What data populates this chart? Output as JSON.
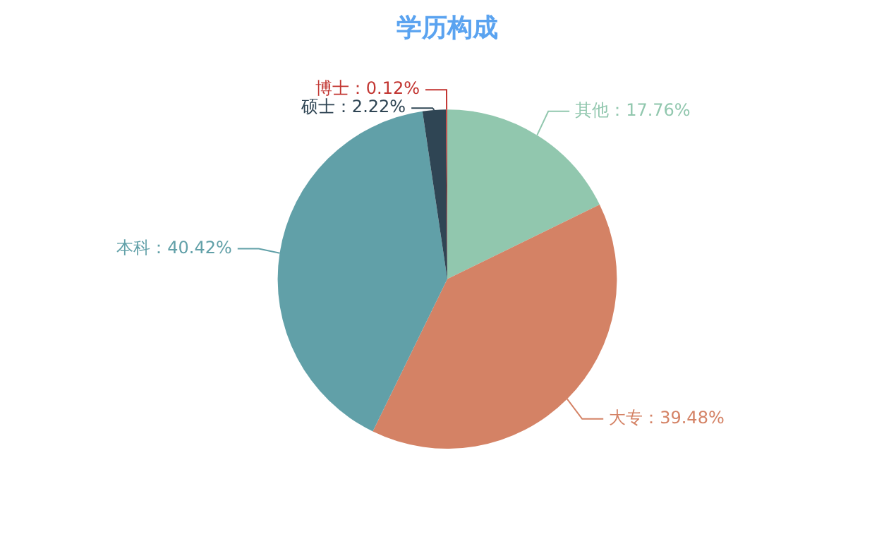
{
  "chart_data": {
    "type": "pie",
    "title": "学历构成",
    "categories": [
      "其他",
      "大专",
      "本科",
      "硕士",
      "博士"
    ],
    "values": [
      17.76,
      39.48,
      40.42,
      2.22,
      0.12
    ],
    "colors": [
      "#91c7ae",
      "#d48265",
      "#61a0a8",
      "#2f4554",
      "#c23531"
    ],
    "value_labels": [
      "17.76%",
      "39.48%",
      "40.42%",
      "2.22%",
      "0.12%"
    ],
    "legend": false
  }
}
